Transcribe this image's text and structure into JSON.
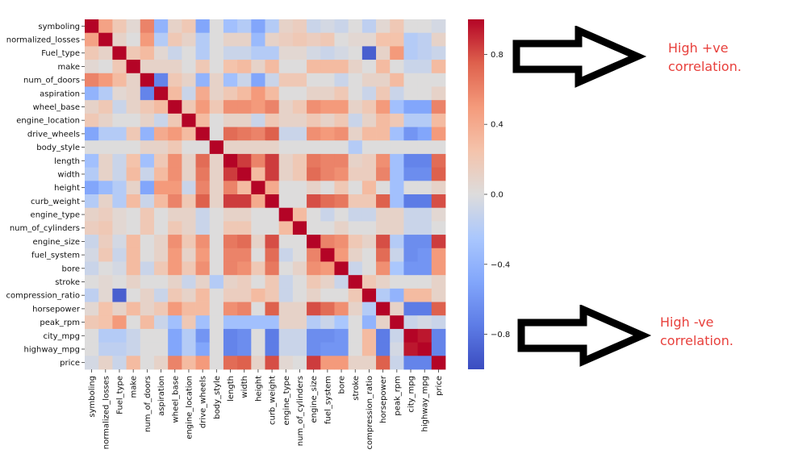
{
  "chart_data": {
    "type": "heatmap",
    "title": "",
    "variables": [
      "symboling",
      "normalized_losses",
      "Fuel_type",
      "make",
      "num_of_doors",
      "aspiration",
      "wheel_base",
      "engine_location",
      "drive_wheels",
      "body_style",
      "length",
      "width",
      "height",
      "curb_weight",
      "engine_type",
      "num_of_cylinders",
      "engine_size",
      "fuel_system",
      "bore",
      "stroke",
      "compression_ratio",
      "horsepower",
      "peak_rpm",
      "city_mpg",
      "highway_mpg",
      "price"
    ],
    "matrix": [
      [
        1,
        0.45,
        0.2,
        0.05,
        0.6,
        -0.4,
        0.1,
        0.2,
        -0.5,
        0,
        -0.3,
        -0.2,
        -0.5,
        -0.2,
        0.1,
        0.15,
        -0.1,
        -0.05,
        -0.1,
        0,
        -0.15,
        0.05,
        0.2,
        0.0,
        0.0,
        -0.05
      ],
      [
        0.45,
        1,
        0.1,
        0,
        0.5,
        -0.2,
        0.2,
        0.1,
        -0.2,
        0,
        0.1,
        0.1,
        -0.35,
        0.1,
        0.15,
        0.2,
        0.15,
        0.2,
        0,
        0.05,
        0.05,
        0.25,
        0.25,
        -0.2,
        -0.15,
        0.1
      ],
      [
        0.2,
        0.1,
        1,
        0.2,
        0.3,
        0.05,
        -0.1,
        0,
        -0.2,
        0,
        -0.1,
        -0.1,
        -0.2,
        -0.2,
        0.05,
        0.05,
        -0.05,
        -0.1,
        -0.05,
        0,
        -0.9,
        0.1,
        0.5,
        -0.2,
        -0.15,
        -0.1
      ],
      [
        0.05,
        0,
        0.2,
        1,
        0.1,
        0.1,
        0.1,
        0,
        0.2,
        0,
        0.25,
        0.3,
        0.1,
        0.3,
        0,
        0,
        0.3,
        0.3,
        0.3,
        0.1,
        0,
        0.3,
        0,
        -0.1,
        -0.1,
        0.3
      ],
      [
        0.6,
        0.5,
        0.3,
        0.1,
        1,
        -0.7,
        0.2,
        0.1,
        -0.4,
        0.1,
        -0.3,
        -0.1,
        -0.5,
        -0.1,
        0.2,
        0.2,
        0,
        0,
        -0.1,
        0,
        0.1,
        0.1,
        0.3,
        0,
        0,
        0
      ],
      [
        -0.4,
        -0.2,
        0.05,
        0.1,
        -0.7,
        1,
        0.3,
        -0.1,
        0.4,
        0.1,
        0.2,
        0.3,
        0.5,
        0.3,
        0,
        0,
        0.1,
        0.1,
        0.2,
        0,
        -0.1,
        0.2,
        -0.1,
        0,
        0,
        0.1
      ],
      [
        0.1,
        0.2,
        -0.1,
        0.1,
        0.2,
        0.3,
        1,
        0.2,
        0.5,
        0.2,
        0.55,
        0.55,
        0.5,
        0.6,
        0.1,
        0.2,
        0.55,
        0.5,
        0.5,
        0.1,
        0.2,
        0.5,
        -0.3,
        -0.5,
        -0.5,
        0.6
      ],
      [
        0.2,
        0.1,
        0,
        0,
        0.1,
        -0.1,
        0.2,
        1,
        0.3,
        0,
        0.1,
        0.1,
        -0.1,
        0.2,
        0.1,
        0.1,
        0.2,
        0.1,
        0.2,
        -0.1,
        0.1,
        0.3,
        0.2,
        -0.2,
        -0.2,
        0.3
      ],
      [
        -0.5,
        -0.2,
        -0.2,
        0.2,
        -0.4,
        0.4,
        0.5,
        0.3,
        1,
        0,
        0.7,
        0.65,
        0.6,
        0.75,
        -0.1,
        -0.1,
        0.55,
        0.5,
        0.55,
        0.1,
        0.3,
        0.3,
        -0.3,
        -0.6,
        -0.5,
        0.5
      ],
      [
        0,
        0,
        0,
        0,
        0.1,
        0.1,
        0.2,
        0,
        0,
        1,
        0.1,
        0.1,
        0.1,
        0.1,
        0,
        0,
        0,
        0,
        0,
        -0.2,
        0,
        0,
        0,
        0,
        0,
        0
      ],
      [
        -0.3,
        0.1,
        -0.1,
        0.25,
        -0.3,
        0.2,
        0.55,
        0.1,
        0.7,
        0.1,
        1,
        0.85,
        0.6,
        0.85,
        0.1,
        0.2,
        0.65,
        0.6,
        0.6,
        0.1,
        0.15,
        0.55,
        -0.3,
        -0.7,
        -0.7,
        0.7
      ],
      [
        -0.2,
        0.1,
        -0.1,
        0.3,
        -0.1,
        0.3,
        0.55,
        0.1,
        0.65,
        0.1,
        0.85,
        1,
        0.3,
        0.85,
        0.1,
        0.2,
        0.7,
        0.6,
        0.55,
        0.15,
        0.15,
        0.6,
        -0.3,
        -0.65,
        -0.65,
        0.75
      ],
      [
        -0.5,
        -0.35,
        -0.2,
        0.1,
        -0.5,
        0.5,
        0.5,
        -0.1,
        0.6,
        0.1,
        0.6,
        0.3,
        1,
        0.4,
        0,
        0,
        0.1,
        0,
        0.2,
        0,
        0.3,
        0,
        -0.3,
        0,
        0,
        0.1
      ],
      [
        -0.2,
        0.1,
        -0.2,
        0.3,
        -0.1,
        0.3,
        0.6,
        0.2,
        0.75,
        0.1,
        0.85,
        0.85,
        0.4,
        1,
        0,
        0,
        0.8,
        0.7,
        0.65,
        0.2,
        0.2,
        0.75,
        -0.3,
        -0.75,
        -0.75,
        0.8
      ],
      [
        0.1,
        0.15,
        0.05,
        0,
        0.2,
        0,
        0.1,
        0.1,
        -0.1,
        0,
        0.1,
        0.1,
        0,
        0,
        1,
        0.3,
        0,
        -0.1,
        0,
        -0.1,
        -0.1,
        0.1,
        0.1,
        -0.1,
        -0.1,
        0.05
      ],
      [
        0.15,
        0.2,
        0.05,
        0,
        0.2,
        0,
        0.2,
        0.1,
        -0.1,
        0,
        0.2,
        0.2,
        0,
        0,
        0.3,
        1,
        0,
        0,
        0.1,
        0,
        0,
        0.1,
        0.1,
        -0.1,
        -0.1,
        0
      ],
      [
        -0.1,
        0.15,
        -0.05,
        0.3,
        0,
        0.1,
        0.55,
        0.2,
        0.55,
        0,
        0.65,
        0.7,
        0.1,
        0.8,
        0,
        0,
        1,
        0.6,
        0.55,
        0.2,
        0.1,
        0.8,
        -0.2,
        -0.65,
        -0.65,
        0.85
      ],
      [
        -0.05,
        0.2,
        -0.1,
        0.3,
        0,
        0.1,
        0.5,
        0.1,
        0.5,
        0,
        0.6,
        0.6,
        0,
        0.7,
        -0.1,
        0,
        0.6,
        1,
        0.5,
        0.1,
        0,
        0.7,
        -0.1,
        -0.65,
        -0.6,
        0.5
      ],
      [
        -0.1,
        0,
        -0.05,
        0.3,
        -0.1,
        0.2,
        0.5,
        0.2,
        0.55,
        0,
        0.6,
        0.55,
        0.2,
        0.65,
        0,
        0.1,
        0.55,
        0.5,
        1,
        -0.1,
        0,
        0.55,
        -0.25,
        -0.6,
        -0.6,
        0.5
      ],
      [
        0,
        0.05,
        0,
        0.1,
        0,
        0,
        0.1,
        -0.1,
        0.1,
        -0.2,
        0.1,
        0.15,
        0,
        0.2,
        -0.1,
        0,
        0.2,
        0.1,
        -0.1,
        1,
        0.2,
        0.1,
        0,
        0,
        0,
        0.1
      ],
      [
        -0.15,
        0.05,
        -0.9,
        0,
        0.1,
        -0.1,
        0.2,
        0.1,
        0.3,
        0,
        0.15,
        0.15,
        0.3,
        0.2,
        -0.1,
        0,
        0.1,
        0,
        0,
        0.2,
        1,
        -0.2,
        -0.4,
        0.3,
        0.3,
        0.1
      ],
      [
        0.05,
        0.25,
        0.1,
        0.3,
        0.1,
        0.2,
        0.5,
        0.3,
        0.3,
        0,
        0.55,
        0.6,
        0,
        0.75,
        0.1,
        0.1,
        0.8,
        0.7,
        0.55,
        0.1,
        -0.2,
        1,
        0.1,
        -0.75,
        -0.75,
        0.75
      ],
      [
        0.2,
        0.25,
        0.5,
        0,
        0.3,
        -0.1,
        -0.3,
        0.2,
        -0.3,
        0,
        -0.3,
        -0.3,
        -0.3,
        -0.3,
        0.1,
        0.1,
        -0.2,
        -0.1,
        -0.25,
        0,
        -0.4,
        0.1,
        1,
        -0.1,
        -0.05,
        -0.1
      ],
      [
        0,
        -0.2,
        -0.2,
        -0.1,
        0,
        0,
        -0.5,
        -0.2,
        -0.6,
        0,
        -0.7,
        -0.65,
        0,
        -0.75,
        -0.1,
        -0.1,
        -0.65,
        -0.65,
        -0.6,
        0,
        0.3,
        -0.75,
        -0.1,
        1,
        0.95,
        -0.7
      ],
      [
        0,
        -0.15,
        -0.15,
        -0.1,
        0,
        0,
        -0.5,
        -0.2,
        -0.5,
        0,
        -0.7,
        -0.65,
        0,
        -0.75,
        -0.1,
        -0.1,
        -0.65,
        -0.6,
        -0.6,
        0,
        0.3,
        -0.75,
        -0.05,
        0.95,
        1,
        -0.7
      ],
      [
        -0.05,
        0.1,
        -0.1,
        0.3,
        0,
        0.1,
        0.6,
        0.3,
        0.5,
        0,
        0.7,
        0.75,
        0.1,
        0.8,
        0.05,
        0,
        0.85,
        0.5,
        0.5,
        0.1,
        0.1,
        0.75,
        -0.1,
        -0.7,
        -0.7,
        1
      ]
    ],
    "vmin": -1,
    "vmax": 1,
    "colormap": "coolwarm",
    "colormap_low": "#3b4cc0",
    "colormap_mid": "#dddddd",
    "colormap_high": "#b40426",
    "colorbar_ticks": [
      "0.8",
      "0.4",
      "0.0",
      "−0.4",
      "−0.8"
    ],
    "colorbar_tick_values": [
      0.8,
      0.4,
      0.0,
      -0.4,
      -0.8
    ]
  },
  "annotations": {
    "high_positive": {
      "line1": "High +ve",
      "line2": "correlation."
    },
    "high_negative": {
      "line1": "High -ve",
      "line2": "correlation."
    }
  },
  "colors": {
    "annotation": "#e8403c",
    "arrow_stroke": "#000000",
    "arrow_fill": "#ffffff"
  }
}
